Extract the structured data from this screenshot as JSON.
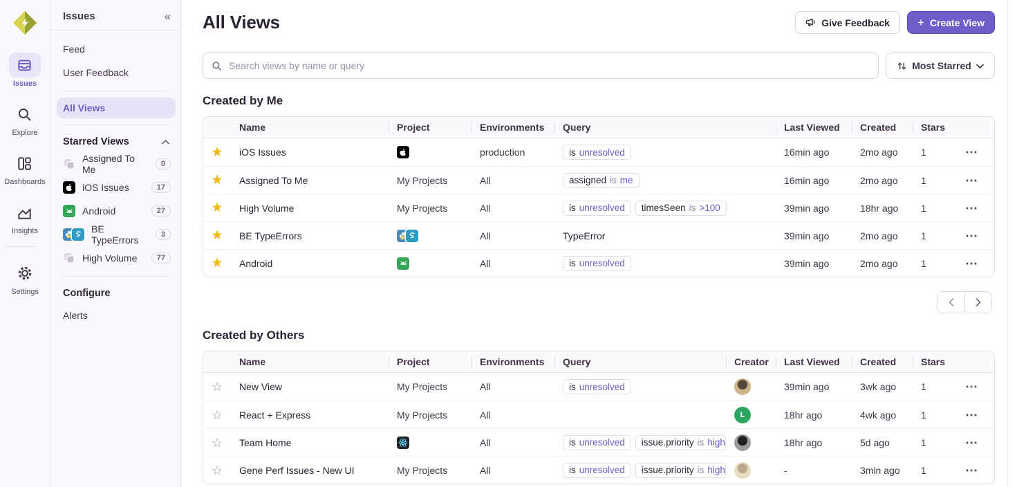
{
  "colors": {
    "accent": "#6c5fc7",
    "accent_light_bg": "#e7e2f6",
    "star_filled": "#edb80f",
    "sidebar_bg": "#f8f7fb"
  },
  "icons": {
    "logo": "org-logo-diamond-bolt",
    "collapse": "chevrons-left-icon",
    "starred_collapse": "chevron-up-icon",
    "search": "magnifier-icon",
    "sort": "sort-arrows-icon",
    "sort_chevron": "chevron-down-icon",
    "feedback": "megaphone-icon",
    "create": "plus-icon",
    "row_menu": "ellipsis-icon",
    "star_on": "star-filled-icon",
    "star_off": "star-outline-icon",
    "pager_prev": "chevron-left-icon",
    "pager_next": "chevron-right-icon"
  },
  "rail": {
    "items": [
      {
        "label": "Issues",
        "icon": "inbox-stack-icon",
        "active": true
      },
      {
        "label": "Explore",
        "icon": "magnifier-icon",
        "active": false
      },
      {
        "label": "Dashboards",
        "icon": "dashboards-icon",
        "active": false
      },
      {
        "label": "Insights",
        "icon": "line-chart-icon",
        "active": false
      },
      {
        "label": "Settings",
        "icon": "gear-icon",
        "active": false,
        "divider_before": true
      }
    ]
  },
  "sidebar": {
    "title": "Issues",
    "nav_items": [
      {
        "label": "Feed"
      },
      {
        "label": "User Feedback"
      }
    ],
    "all_views": {
      "label": "All Views"
    },
    "starred": {
      "title": "Starred Views",
      "items": [
        {
          "icon": "stacked",
          "label": "Assigned To Me",
          "count": "0"
        },
        {
          "icon": "apple",
          "label": "iOS Issues",
          "count": "17"
        },
        {
          "icon": "android",
          "label": "Android",
          "count": "27"
        },
        {
          "icon": "python-pair",
          "label": "BE TypeErrors",
          "count": "3"
        },
        {
          "icon": "stacked",
          "label": "High Volume",
          "count": "77"
        }
      ]
    },
    "configure": {
      "title": "Configure",
      "items": [
        {
          "label": "Alerts"
        }
      ]
    }
  },
  "header": {
    "title": "All Views",
    "feedback_button": "Give Feedback",
    "create_button": "Create View"
  },
  "toolbar": {
    "search_placeholder": "Search views by name or query",
    "sort_button": "Most Starred"
  },
  "sections": [
    {
      "title": "Created by Me",
      "columns": [
        "Name",
        "Project",
        "Environments",
        "Query",
        "Last Viewed",
        "Created",
        "Stars"
      ],
      "has_creator": false,
      "pagination": true,
      "rows": [
        {
          "starred": true,
          "name": "iOS Issues",
          "project": {
            "icons": [
              "apple"
            ]
          },
          "environments": "production",
          "query": [
            {
              "segs": [
                [
                  "k",
                  "is"
                ],
                [
                  "v",
                  "unresolved"
                ]
              ]
            }
          ],
          "last_viewed": "16min ago",
          "created": "2mo ago",
          "stars": "1"
        },
        {
          "starred": true,
          "name": "Assigned To Me",
          "project": {
            "text": "My Projects"
          },
          "environments": "All",
          "query": [
            {
              "segs": [
                [
                  "k",
                  "assigned"
                ],
                [
                  "o",
                  "is"
                ],
                [
                  "v",
                  "me"
                ]
              ]
            }
          ],
          "last_viewed": "16min ago",
          "created": "2mo ago",
          "stars": "1"
        },
        {
          "starred": true,
          "name": "High Volume",
          "project": {
            "text": "My Projects"
          },
          "environments": "All",
          "query": [
            {
              "segs": [
                [
                  "k",
                  "is"
                ],
                [
                  "v",
                  "unresolved"
                ]
              ]
            },
            {
              "segs": [
                [
                  "k",
                  "timesSeen"
                ],
                [
                  "o",
                  "is"
                ],
                [
                  "v",
                  ">100"
                ]
              ]
            }
          ],
          "last_viewed": "39min ago",
          "created": "18hr ago",
          "stars": "1"
        },
        {
          "starred": true,
          "name": "BE TypeErrors",
          "project": {
            "icons": [
              "python",
              "snake"
            ]
          },
          "environments": "All",
          "query": [],
          "query_plain": "TypeError",
          "last_viewed": "39min ago",
          "created": "2mo ago",
          "stars": "1"
        },
        {
          "starred": true,
          "name": "Android",
          "project": {
            "icons": [
              "android"
            ]
          },
          "environments": "All",
          "query": [
            {
              "segs": [
                [
                  "k",
                  "is"
                ],
                [
                  "v",
                  "unresolved"
                ]
              ]
            }
          ],
          "last_viewed": "39min ago",
          "created": "2mo ago",
          "stars": "1"
        }
      ]
    },
    {
      "title": "Created by Others",
      "columns": [
        "Name",
        "Project",
        "Environments",
        "Query",
        "Creator",
        "Last Viewed",
        "Created",
        "Stars"
      ],
      "has_creator": true,
      "pagination": false,
      "rows": [
        {
          "starred": false,
          "name": "New View",
          "project": {
            "text": "My Projects"
          },
          "environments": "All",
          "query": [
            {
              "segs": [
                [
                  "k",
                  "is"
                ],
                [
                  "v",
                  "unresolved"
                ]
              ]
            }
          ],
          "creator": {
            "kind": "photo",
            "a": "#cdb489",
            "b": "#55483a"
          },
          "last_viewed": "39min ago",
          "created": "3wk ago",
          "stars": "1"
        },
        {
          "starred": false,
          "name": "React + Express",
          "project": {
            "text": "My Projects"
          },
          "environments": "All",
          "query": [],
          "creator": {
            "kind": "letter",
            "letter": "L",
            "bg": "#2ba55f"
          },
          "last_viewed": "18hr ago",
          "created": "4wk ago",
          "stars": "1"
        },
        {
          "starred": false,
          "name": "Team Home",
          "project": {
            "icons": [
              "react"
            ]
          },
          "environments": "All",
          "query": [
            {
              "segs": [
                [
                  "k",
                  "is"
                ],
                [
                  "v",
                  "unresolved"
                ]
              ]
            },
            {
              "segs": [
                [
                  "k",
                  "issue.priority"
                ],
                [
                  "o",
                  "is"
                ],
                [
                  "v",
                  "high"
                ]
              ],
              "clip": true
            }
          ],
          "creator": {
            "kind": "photo",
            "a": "#9c9c9c",
            "b": "#202020"
          },
          "last_viewed": "18hr ago",
          "created": "5d ago",
          "stars": "1"
        },
        {
          "starred": false,
          "name": "Gene Perf Issues - New UI",
          "project": {
            "text": "My Projects"
          },
          "environments": "All",
          "query": [
            {
              "segs": [
                [
                  "k",
                  "is"
                ],
                [
                  "v",
                  "unresolved"
                ]
              ]
            },
            {
              "segs": [
                [
                  "k",
                  "issue.priority"
                ],
                [
                  "o",
                  "is"
                ],
                [
                  "v",
                  "high"
                ]
              ],
              "clip": true
            }
          ],
          "creator": {
            "kind": "photo",
            "a": "#e8dcc0",
            "b": "#b9a98a"
          },
          "last_viewed": "-",
          "created": "3min ago",
          "stars": "1"
        }
      ]
    }
  ]
}
